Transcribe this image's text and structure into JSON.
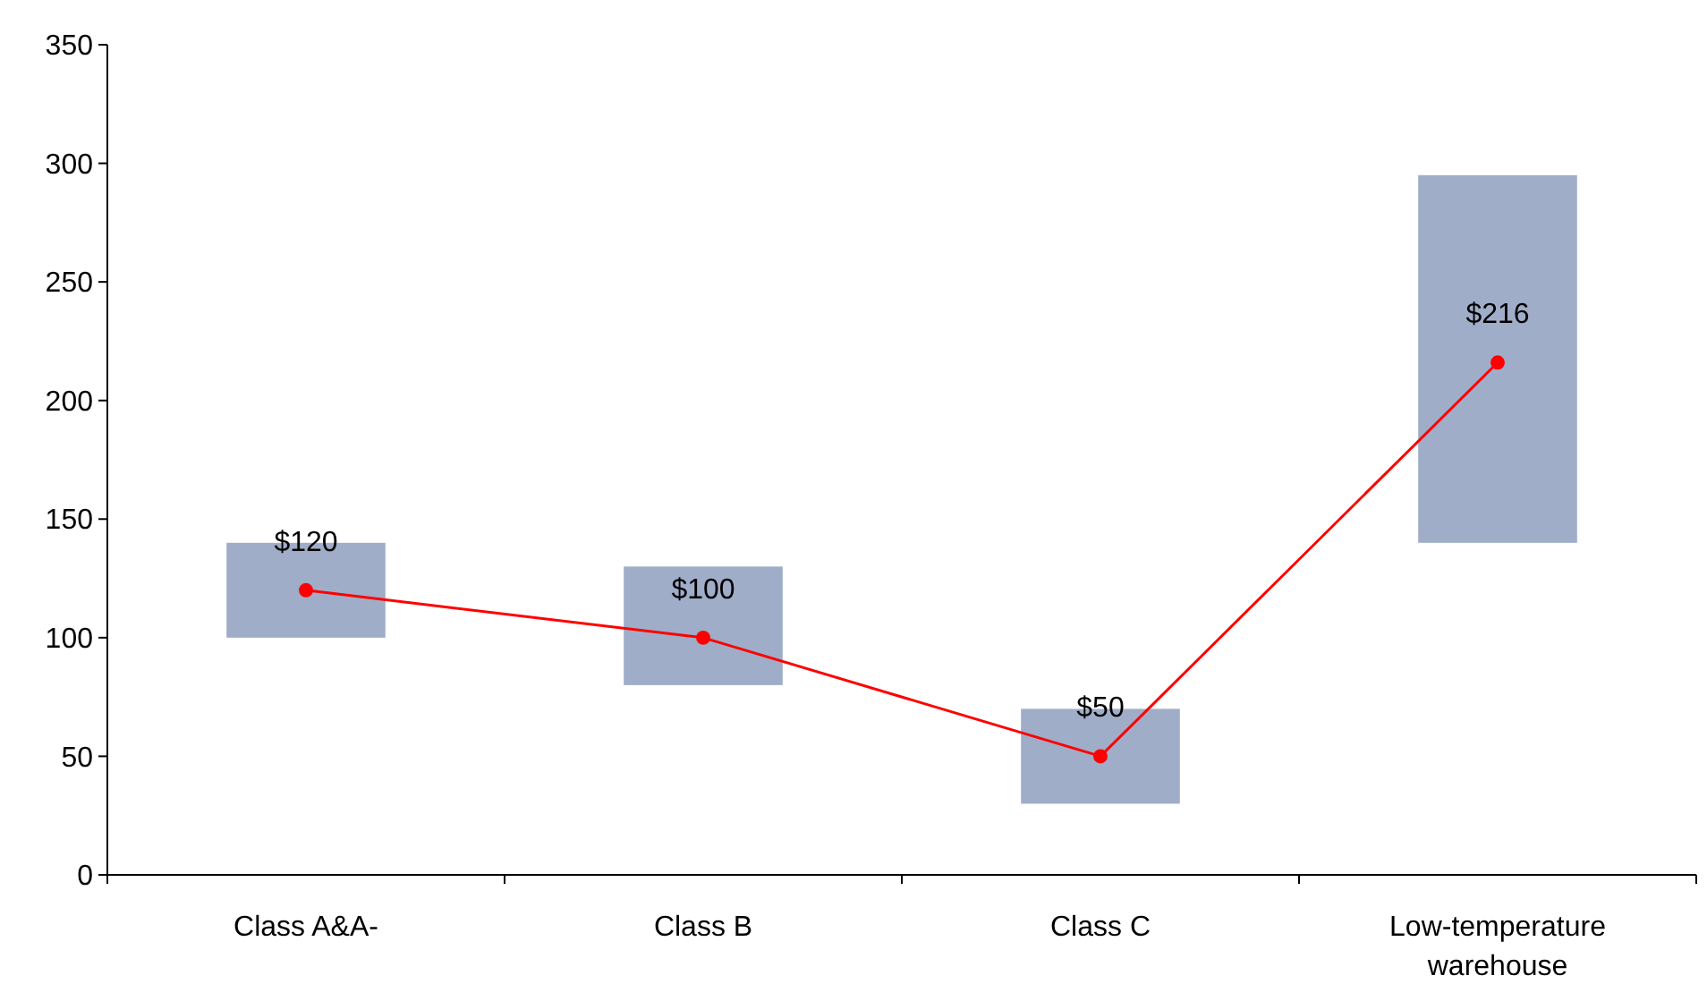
{
  "chart_data": {
    "type": "bar",
    "categories": [
      "Class A&A-",
      "Class B",
      "Class C",
      "Low-temperature warehouse"
    ],
    "ylim": [
      0,
      350
    ],
    "yticks": [
      0,
      50,
      100,
      150,
      200,
      250,
      300,
      350
    ],
    "grid": false,
    "marker": "circle",
    "series": [
      {
        "color": "#a0adc8",
        "base": [
          100,
          80,
          30,
          140
        ],
        "values": [
          40,
          50,
          40,
          155
        ]
      },
      {
        "type": "line",
        "color": "#ff0000",
        "values": [
          120,
          100,
          50,
          216
        ],
        "value_labels": [
          "$120",
          "$100",
          "$50",
          "$216"
        ]
      }
    ]
  }
}
